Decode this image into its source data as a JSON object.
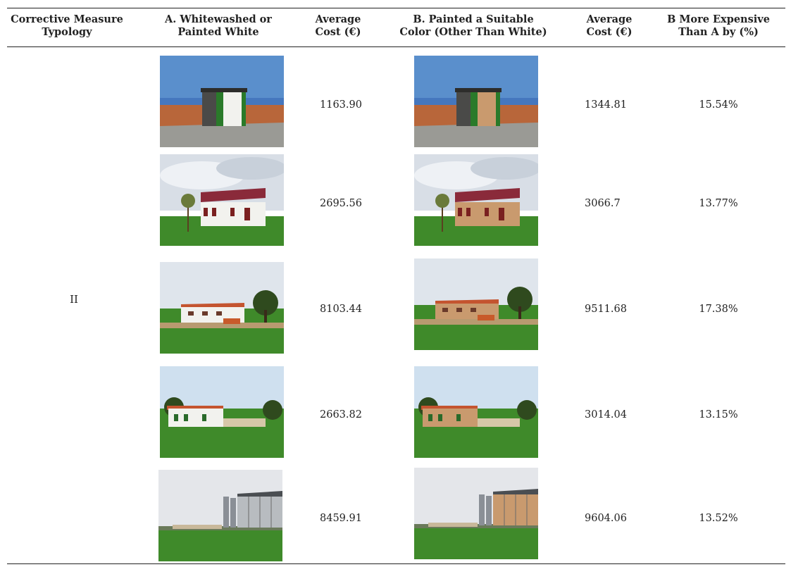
{
  "headers": {
    "typology": [
      "Corrective Measure",
      "Typology"
    ],
    "a": [
      "A. Whitewashed or",
      "Painted White"
    ],
    "cost_a": [
      "Average",
      "Cost (€)"
    ],
    "b": [
      "B. Painted a Suitable",
      "Color (Other Than White)"
    ],
    "cost_b": [
      "Average",
      "Cost (€)"
    ],
    "pct": [
      "B More Expensive",
      "Than A by (%)"
    ]
  },
  "typology": "II",
  "rows": [
    {
      "cost_a": "1163.90",
      "cost_b": "1344.81",
      "pct": "15.54%"
    },
    {
      "cost_a": "2695.56",
      "cost_b": "3066.7",
      "pct": "13.77%"
    },
    {
      "cost_a": "8103.44",
      "cost_b": "9511.68",
      "pct": "17.38%"
    },
    {
      "cost_a": "2663.82",
      "cost_b": "3014.04",
      "pct": "13.15%"
    },
    {
      "cost_a": "8459.91",
      "cost_b": "9604.06",
      "pct": "13.52%"
    }
  ],
  "colors": {
    "whitewash": "#f2f2ee",
    "suitable": "#c99a6e",
    "sky": "#5a8fcc",
    "grass": "#3f8a2a",
    "soil": "#b8663a",
    "roof": "#c4542f"
  }
}
